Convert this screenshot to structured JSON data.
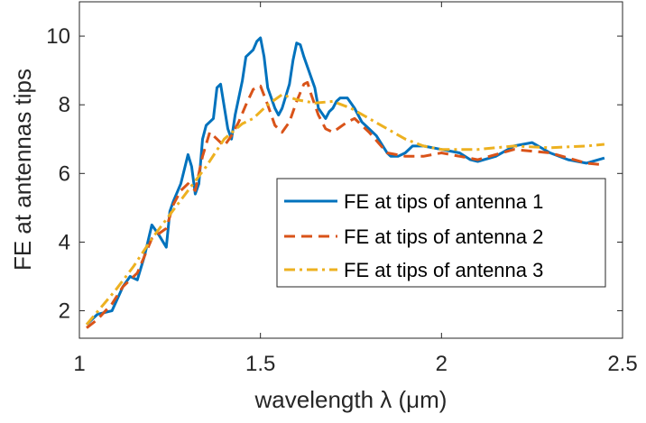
{
  "chart_data": {
    "type": "line",
    "xlabel": "wavelength λ (μm)",
    "ylabel": "FE at antennas tips",
    "xlim": [
      1,
      2.5
    ],
    "ylim": [
      1.2,
      11
    ],
    "xticks": [
      1,
      1.5,
      2,
      2.5
    ],
    "xtick_labels": [
      "1",
      "1.5",
      "2",
      "2.5"
    ],
    "yticks": [
      2,
      4,
      6,
      8,
      10
    ],
    "ytick_labels": [
      "2",
      "4",
      "6",
      "8",
      "10"
    ],
    "grid": false,
    "legend_position": "lower-right",
    "series": [
      {
        "name": "FE at tips of antenna 1",
        "color": "#0072BD",
        "style": "solid",
        "x": [
          1.02,
          1.05,
          1.09,
          1.12,
          1.14,
          1.16,
          1.18,
          1.2,
          1.22,
          1.24,
          1.25,
          1.26,
          1.28,
          1.3,
          1.31,
          1.32,
          1.33,
          1.34,
          1.35,
          1.37,
          1.38,
          1.39,
          1.41,
          1.42,
          1.43,
          1.45,
          1.46,
          1.48,
          1.49,
          1.5,
          1.51,
          1.52,
          1.54,
          1.55,
          1.56,
          1.58,
          1.59,
          1.6,
          1.61,
          1.62,
          1.63,
          1.65,
          1.66,
          1.68,
          1.69,
          1.7,
          1.71,
          1.72,
          1.74,
          1.76,
          1.78,
          1.8,
          1.82,
          1.85,
          1.86,
          1.88,
          1.9,
          1.92,
          1.95,
          2.0,
          2.05,
          2.08,
          2.1,
          2.15,
          2.2,
          2.25,
          2.3,
          2.35,
          2.4,
          2.45
        ],
        "y": [
          1.6,
          1.9,
          2.0,
          2.7,
          3.0,
          2.9,
          3.6,
          4.5,
          4.2,
          3.85,
          4.9,
          5.2,
          5.7,
          6.55,
          6.2,
          5.4,
          5.7,
          7.0,
          7.4,
          7.6,
          8.5,
          8.6,
          7.3,
          7.0,
          7.7,
          8.7,
          9.4,
          9.6,
          9.85,
          9.95,
          9.4,
          8.5,
          7.9,
          7.7,
          7.9,
          8.6,
          9.3,
          9.8,
          9.75,
          9.4,
          9.1,
          8.5,
          7.9,
          7.6,
          7.8,
          7.9,
          8.1,
          8.2,
          8.2,
          7.9,
          7.5,
          7.3,
          7.1,
          6.6,
          6.5,
          6.5,
          6.6,
          6.8,
          6.8,
          6.7,
          6.6,
          6.4,
          6.35,
          6.5,
          6.8,
          6.9,
          6.6,
          6.4,
          6.3,
          6.45
        ]
      },
      {
        "name": "FE at tips of antenna 2",
        "color": "#D95319",
        "style": "dashed",
        "x": [
          1.02,
          1.05,
          1.09,
          1.12,
          1.16,
          1.2,
          1.24,
          1.26,
          1.28,
          1.3,
          1.32,
          1.34,
          1.36,
          1.38,
          1.4,
          1.42,
          1.44,
          1.46,
          1.48,
          1.5,
          1.52,
          1.54,
          1.56,
          1.58,
          1.6,
          1.62,
          1.63,
          1.64,
          1.66,
          1.68,
          1.7,
          1.72,
          1.74,
          1.76,
          1.8,
          1.85,
          1.9,
          1.95,
          2.0,
          2.1,
          2.2,
          2.3,
          2.4,
          2.45
        ],
        "y": [
          1.5,
          1.75,
          2.2,
          2.7,
          3.1,
          4.1,
          4.4,
          5.1,
          5.5,
          5.7,
          5.5,
          6.5,
          7.2,
          7.0,
          6.8,
          7.1,
          7.5,
          8.0,
          8.45,
          8.55,
          8.0,
          7.4,
          7.2,
          7.5,
          8.1,
          8.6,
          8.65,
          8.3,
          7.7,
          7.3,
          7.2,
          7.35,
          7.5,
          7.6,
          7.2,
          6.6,
          6.5,
          6.5,
          6.6,
          6.4,
          6.7,
          6.6,
          6.3,
          6.25
        ]
      },
      {
        "name": "FE at tips of antenna 3",
        "color": "#EDB120",
        "style": "dashdot",
        "x": [
          1.02,
          1.1,
          1.15,
          1.2,
          1.25,
          1.3,
          1.35,
          1.4,
          1.45,
          1.48,
          1.52,
          1.56,
          1.6,
          1.65,
          1.7,
          1.75,
          1.8,
          1.85,
          1.9,
          1.95,
          2.0,
          2.1,
          2.2,
          2.3,
          2.4,
          2.45
        ],
        "y": [
          1.6,
          2.6,
          3.3,
          4.1,
          4.8,
          5.5,
          6.2,
          7.0,
          7.45,
          7.6,
          8.0,
          8.3,
          8.15,
          8.05,
          8.1,
          7.9,
          7.6,
          7.3,
          7.0,
          6.8,
          6.7,
          6.7,
          6.8,
          6.75,
          6.8,
          6.85
        ]
      }
    ]
  }
}
